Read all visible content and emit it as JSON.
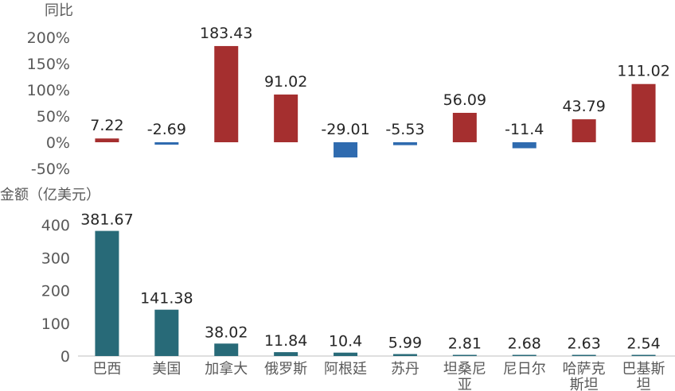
{
  "colors": {
    "positive": "#A52F2F",
    "negative": "#2F6BAF",
    "amount": "#286A78",
    "axis": "#BFBFBF"
  },
  "chart_data": [
    {
      "type": "bar",
      "ylabel": "同比",
      "categories": [
        "巴西",
        "美国",
        "加拿大",
        "俄罗斯",
        "阿根廷",
        "苏丹",
        "坦桑尼亚",
        "尼日尔",
        "哈萨克斯坦",
        "巴基斯坦"
      ],
      "values": [
        7.22,
        -2.69,
        183.43,
        91.02,
        -29.01,
        -5.53,
        56.09,
        -11.4,
        43.79,
        111.02
      ],
      "data_labels": [
        "7.22",
        "-2.69",
        "183.43",
        "91.02",
        "-29.01",
        "-5.53",
        "56.09",
        "-11.4",
        "43.79",
        "111.02"
      ],
      "yticks": [
        "200%",
        "150%",
        "100%",
        "50%",
        "0%",
        "-50%"
      ],
      "ytick_values": [
        200,
        150,
        100,
        50,
        0,
        -50
      ],
      "ylim": [
        -50,
        200
      ],
      "grid": false
    },
    {
      "type": "bar",
      "ylabel": "金额（亿美元）",
      "categories": [
        "巴西",
        "美国",
        "加拿大",
        "俄罗斯",
        "阿根廷",
        "苏丹",
        "坦桑尼亚",
        "尼日尔",
        "哈萨克斯坦",
        "巴基斯坦"
      ],
      "category_lines": [
        [
          "巴西"
        ],
        [
          "美国"
        ],
        [
          "加拿大"
        ],
        [
          "俄罗斯"
        ],
        [
          "阿根廷"
        ],
        [
          "苏丹"
        ],
        [
          "坦桑尼",
          "亚"
        ],
        [
          "尼日尔"
        ],
        [
          "哈萨克",
          "斯坦"
        ],
        [
          "巴基斯",
          "坦"
        ]
      ],
      "values": [
        381.67,
        141.38,
        38.02,
        11.84,
        10.4,
        5.99,
        2.81,
        2.68,
        2.63,
        2.54
      ],
      "data_labels": [
        "381.67",
        "141.38",
        "38.02",
        "11.84",
        "10.4",
        "5.99",
        "2.81",
        "2.68",
        "2.63",
        "2.54"
      ],
      "yticks": [
        "400",
        "300",
        "200",
        "100",
        "0"
      ],
      "ytick_values": [
        400,
        300,
        200,
        100,
        0
      ],
      "ylim": [
        0,
        400
      ],
      "grid": false
    }
  ]
}
